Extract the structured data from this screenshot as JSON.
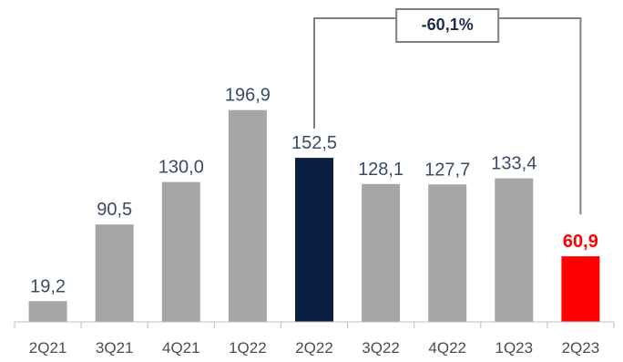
{
  "chart_data": {
    "type": "bar",
    "categories": [
      "2Q21",
      "3Q21",
      "4Q21",
      "1Q22",
      "2Q22",
      "3Q22",
      "4Q22",
      "1Q23",
      "2Q23"
    ],
    "values": [
      19.2,
      90.5,
      130.0,
      196.9,
      152.5,
      128.1,
      127.7,
      133.4,
      60.9
    ],
    "value_labels": [
      "19,2",
      "90,5",
      "130,0",
      "196,9",
      "152,5",
      "128,1",
      "127,7",
      "133,4",
      "60,9"
    ],
    "bar_colors": [
      "#a6a6a6",
      "#a6a6a6",
      "#a6a6a6",
      "#a6a6a6",
      "#0b1f45",
      "#a6a6a6",
      "#a6a6a6",
      "#a6a6a6",
      "#ff0000"
    ],
    "label_colors": [
      "#3b4a66",
      "#3b4a66",
      "#3b4a66",
      "#3b4a66",
      "#3b4a66",
      "#3b4a66",
      "#3b4a66",
      "#3b4a66",
      "#ff0000"
    ],
    "highlight_label_index": 8,
    "ylim": [
      0,
      200
    ],
    "grid": false,
    "title": "",
    "xlabel": "",
    "ylabel": "",
    "annotation": {
      "text": "-60,1%",
      "from_category": "2Q22",
      "to_category": "2Q23",
      "connector_color": "#808080",
      "text_color": "#1e2a52"
    }
  }
}
